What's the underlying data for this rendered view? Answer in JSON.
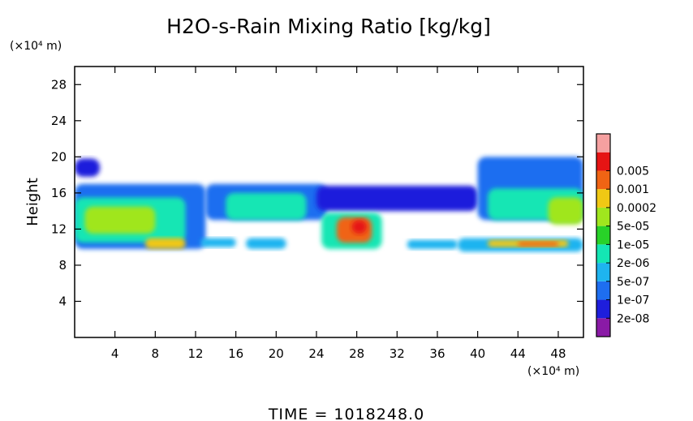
{
  "chart_data": {
    "type": "heatmap",
    "title": "H2O-s-Rain Mixing Ratio [kg/kg]",
    "xlabel": "",
    "ylabel": "Height",
    "x_unit_label": "(×10⁴ m)",
    "y_unit_label": "(×10⁴ m)",
    "xlim": [
      0,
      50.5
    ],
    "ylim": [
      0,
      30
    ],
    "x_ticks": [
      4,
      8,
      12,
      16,
      20,
      24,
      28,
      32,
      36,
      40,
      44,
      48
    ],
    "y_ticks": [
      4,
      8,
      12,
      16,
      20,
      24,
      28
    ],
    "colorbar": {
      "levels": [
        "2e-08",
        "1e-07",
        "5e-07",
        "2e-06",
        "1e-05",
        "5e-05",
        "0.0002",
        "0.001",
        "0.005"
      ],
      "colors": [
        "#8a1aa6",
        "#1e1edc",
        "#1e6ef0",
        "#1eb4f0",
        "#14e6b4",
        "#28d228",
        "#a0e61e",
        "#f0c814",
        "#f06414",
        "#e61414",
        "#f5a0a0"
      ]
    },
    "regions": [
      {
        "x": [
          0,
          2.5
        ],
        "y": [
          17.8,
          19.8
        ],
        "level": 1
      },
      {
        "x": [
          0,
          13
        ],
        "y": [
          9.8,
          17
        ],
        "level": 2
      },
      {
        "x": [
          13,
          25
        ],
        "y": [
          13,
          17
        ],
        "level": 2
      },
      {
        "x": [
          24,
          40
        ],
        "y": [
          14,
          16.8
        ],
        "level": 1
      },
      {
        "x": [
          40,
          50.5
        ],
        "y": [
          13,
          20
        ],
        "level": 2
      },
      {
        "x": [
          0,
          11
        ],
        "y": [
          10.5,
          15.5
        ],
        "level": 4
      },
      {
        "x": [
          1,
          8
        ],
        "y": [
          11.5,
          14.5
        ],
        "level": 6
      },
      {
        "x": [
          7,
          11
        ],
        "y": [
          9.8,
          11
        ],
        "level": 7
      },
      {
        "x": [
          12.5,
          16
        ],
        "y": [
          10,
          11
        ],
        "level": 3
      },
      {
        "x": [
          17,
          21
        ],
        "y": [
          9.8,
          11
        ],
        "level": 3
      },
      {
        "x": [
          15,
          23
        ],
        "y": [
          13,
          16
        ],
        "level": 4
      },
      {
        "x": [
          24.5,
          30.5
        ],
        "y": [
          9.8,
          13.8
        ],
        "level": 4
      },
      {
        "x": [
          26,
          29.5
        ],
        "y": [
          10.5,
          13.3
        ],
        "level": 8
      },
      {
        "x": [
          27.5,
          29
        ],
        "y": [
          11.5,
          13
        ],
        "level": 9
      },
      {
        "x": [
          33,
          38
        ],
        "y": [
          9.8,
          10.8
        ],
        "level": 3
      },
      {
        "x": [
          38,
          50.5
        ],
        "y": [
          9.5,
          11
        ],
        "level": 3
      },
      {
        "x": [
          41,
          49
        ],
        "y": [
          10,
          10.8
        ],
        "level": 7
      },
      {
        "x": [
          44,
          48
        ],
        "y": [
          10.1,
          10.6
        ],
        "level": 8
      },
      {
        "x": [
          41,
          50.5
        ],
        "y": [
          13,
          16.5
        ],
        "level": 4
      },
      {
        "x": [
          47,
          50.5
        ],
        "y": [
          12.5,
          15.5
        ],
        "level": 6
      }
    ]
  },
  "footer": {
    "time_label": "TIME = 1018248.0"
  }
}
